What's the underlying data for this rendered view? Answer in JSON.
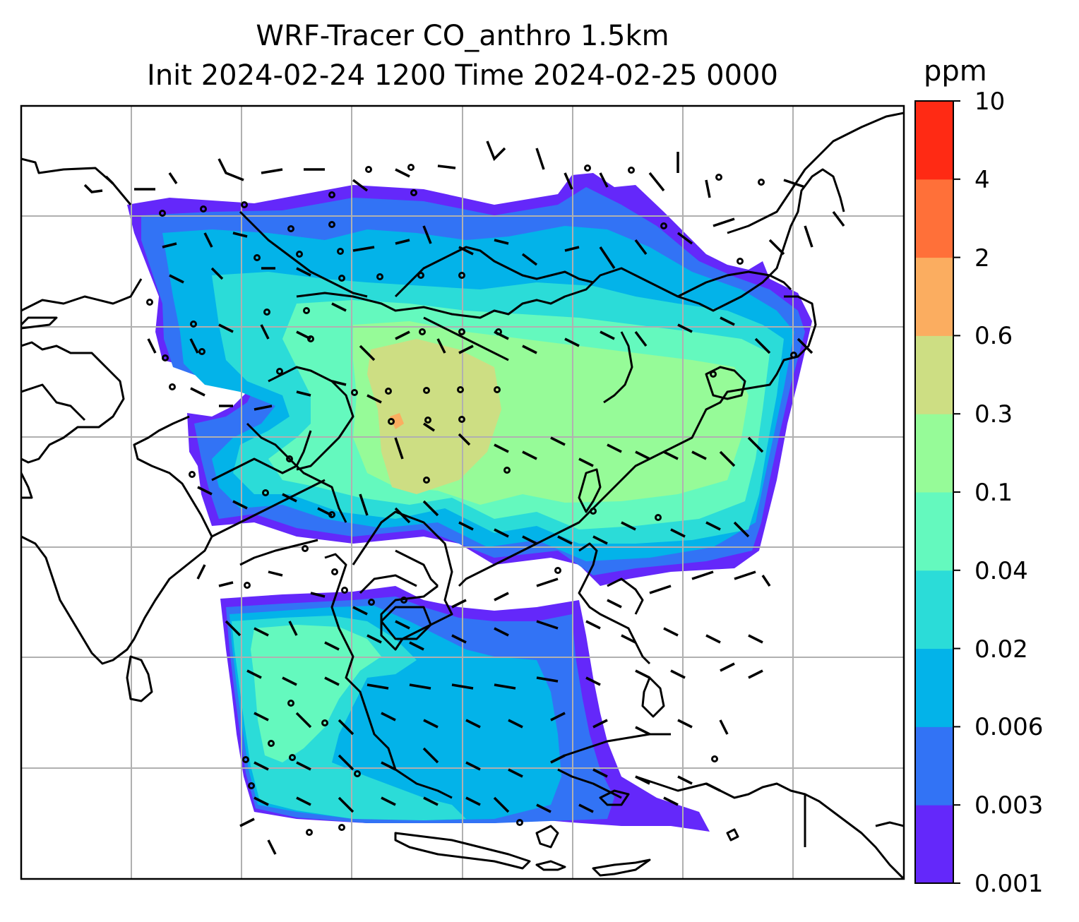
{
  "title": {
    "line1": "WRF-Tracer CO_anthro 1.5km",
    "line2": "Init 2024-02-24 1200 Time 2024-02-25 0000"
  },
  "colorbar": {
    "unit": "ppm",
    "levels": [
      "0.001",
      "0.003",
      "0.006",
      "0.02",
      "0.04",
      "0.1",
      "0.3",
      "0.6",
      "2",
      "4",
      "10"
    ],
    "colors": [
      "#6428fa",
      "#3273f5",
      "#03b3e9",
      "#2bdcd8",
      "#64f9be",
      "#96fb98",
      "#cdde83",
      "#fbad60",
      "#ff7039",
      "#ff2a14"
    ]
  },
  "map": {
    "background": "#ffffff",
    "gridlines": true,
    "gridline_color": "#b0b0b0",
    "coastline_color": "#000000",
    "wind_barbs": true
  },
  "chart_data": {
    "type": "heatmap",
    "variable": "CO_anthro",
    "level": "1.5km",
    "unit": "ppm",
    "color_levels": [
      0.001,
      0.003,
      0.006,
      0.02,
      0.04,
      0.1,
      0.3,
      0.6,
      2,
      4,
      10
    ]
  }
}
